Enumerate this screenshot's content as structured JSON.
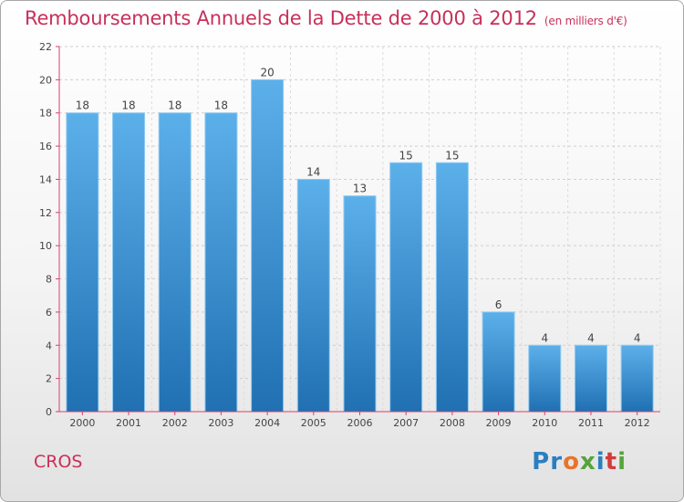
{
  "title": "Remboursements Annuels de la Dette de 2000 à 2012",
  "subtitle": "(en milliers d'€)",
  "place_label": "CROS",
  "logo_text": "Proxiti",
  "colors": {
    "title": "#c8305a",
    "bar_light": "#5aaee8",
    "bar_dark": "#2272b6",
    "axis": "#d8406a"
  },
  "chart_data": {
    "type": "bar",
    "title": "Remboursements Annuels de la Dette de 2000 à 2012",
    "subtitle": "(en milliers d'€)",
    "xlabel": "",
    "ylabel": "",
    "categories": [
      "2000",
      "2001",
      "2002",
      "2003",
      "2004",
      "2005",
      "2006",
      "2007",
      "2008",
      "2009",
      "2010",
      "2011",
      "2012"
    ],
    "values": [
      18,
      18,
      18,
      18,
      20,
      14,
      13,
      15,
      15,
      6,
      4,
      4,
      4
    ],
    "ylim": [
      0,
      22
    ],
    "yticks": [
      0,
      2,
      4,
      6,
      8,
      10,
      12,
      14,
      16,
      18,
      20,
      22
    ],
    "grid": true,
    "data_labels": true
  }
}
